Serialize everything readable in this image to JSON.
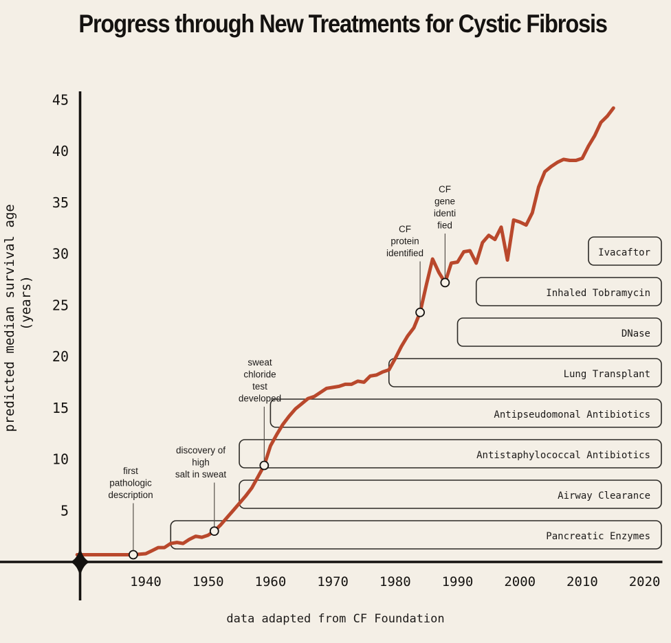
{
  "page": {
    "title": "Progress through New Treatments for Cystic Fibrosis",
    "caption": "data adapted from CF Foundation"
  },
  "chart_data": {
    "type": "line",
    "title": "Progress through New Treatments for Cystic Fibrosis",
    "source_note": "data adapted from CF Foundation",
    "xlabel": "",
    "ylabel": "predicted median survival age",
    "ylabel_line2": "(years)",
    "xlim": [
      1929,
      2022
    ],
    "ylim": [
      0,
      45.5
    ],
    "xticks": [
      1940,
      1950,
      1960,
      1970,
      1980,
      1990,
      2000,
      2010,
      2020
    ],
    "yticks": [
      5,
      10,
      15,
      20,
      25,
      30,
      35,
      40,
      45
    ],
    "grid": false,
    "legend": "none",
    "colors": {
      "background": "#f4efe6",
      "line": "#b9482c",
      "axis": "#141210",
      "box_border": "#2b2925",
      "leader_line": "#56504a",
      "marker_fill": "#f7f2e9",
      "text": "#1b1918"
    },
    "series": [
      {
        "name": "predicted median survival age (years)",
        "points": [
          [
            1929,
            0.7
          ],
          [
            1932,
            0.7
          ],
          [
            1935,
            0.7
          ],
          [
            1938,
            0.7
          ],
          [
            1939,
            0.75
          ],
          [
            1940,
            0.8
          ],
          [
            1941,
            1.1
          ],
          [
            1942,
            1.4
          ],
          [
            1943,
            1.4
          ],
          [
            1944,
            1.8
          ],
          [
            1945,
            1.9
          ],
          [
            1946,
            1.8
          ],
          [
            1947,
            2.2
          ],
          [
            1948,
            2.5
          ],
          [
            1949,
            2.4
          ],
          [
            1950,
            2.6
          ],
          [
            1951,
            3.0
          ],
          [
            1952,
            3.6
          ],
          [
            1953,
            4.3
          ],
          [
            1954,
            5.0
          ],
          [
            1955,
            5.7
          ],
          [
            1956,
            6.4
          ],
          [
            1957,
            7.2
          ],
          [
            1958,
            8.3
          ],
          [
            1959,
            9.4
          ],
          [
            1960,
            11.3
          ],
          [
            1961,
            12.4
          ],
          [
            1962,
            13.4
          ],
          [
            1963,
            14.2
          ],
          [
            1964,
            14.9
          ],
          [
            1965,
            15.4
          ],
          [
            1966,
            15.9
          ],
          [
            1967,
            16.1
          ],
          [
            1968,
            16.5
          ],
          [
            1969,
            16.9
          ],
          [
            1970,
            17.0
          ],
          [
            1971,
            17.1
          ],
          [
            1972,
            17.3
          ],
          [
            1973,
            17.3
          ],
          [
            1974,
            17.6
          ],
          [
            1975,
            17.5
          ],
          [
            1976,
            18.1
          ],
          [
            1977,
            18.2
          ],
          [
            1978,
            18.5
          ],
          [
            1979,
            18.7
          ],
          [
            1980,
            19.8
          ],
          [
            1981,
            21.0
          ],
          [
            1982,
            22.0
          ],
          [
            1983,
            22.8
          ],
          [
            1984,
            24.3
          ],
          [
            1985,
            27.0
          ],
          [
            1986,
            29.5
          ],
          [
            1987,
            28.2
          ],
          [
            1988,
            27.2
          ],
          [
            1989,
            29.1
          ],
          [
            1990,
            29.2
          ],
          [
            1991,
            30.2
          ],
          [
            1992,
            30.3
          ],
          [
            1993,
            29.1
          ],
          [
            1994,
            31.1
          ],
          [
            1995,
            31.8
          ],
          [
            1996,
            31.4
          ],
          [
            1997,
            32.6
          ],
          [
            1998,
            29.4
          ],
          [
            1999,
            33.3
          ],
          [
            2000,
            33.1
          ],
          [
            2001,
            32.8
          ],
          [
            2002,
            34.0
          ],
          [
            2003,
            36.5
          ],
          [
            2004,
            38.0
          ],
          [
            2005,
            38.5
          ],
          [
            2006,
            38.9
          ],
          [
            2007,
            39.2
          ],
          [
            2008,
            39.1
          ],
          [
            2009,
            39.1
          ],
          [
            2010,
            39.3
          ],
          [
            2011,
            40.5
          ],
          [
            2012,
            41.5
          ],
          [
            2013,
            42.8
          ],
          [
            2014,
            43.4
          ],
          [
            2015,
            44.2
          ]
        ]
      }
    ],
    "events": [
      {
        "label_lines": [
          "first",
          "pathologic",
          "description"
        ],
        "year": 1938,
        "value": 0.7,
        "text_cx": 190,
        "text_top": 678
      },
      {
        "label_lines": [
          "discovery of",
          "high",
          "salt in sweat"
        ],
        "year": 1951,
        "value": 3.0,
        "text_cx": 292,
        "text_top": 648
      },
      {
        "label_lines": [
          "sweat",
          "chloride",
          "test",
          "developed"
        ],
        "year": 1959,
        "value": 9.4,
        "text_cx": 378,
        "text_top": 520
      },
      {
        "label_lines": [
          "CF",
          "protein",
          "identified"
        ],
        "year": 1984,
        "value": 24.3,
        "text_cx": 589,
        "text_top": 326
      },
      {
        "label_lines": [
          "CF",
          "gene",
          "identi",
          "fied"
        ],
        "year": 1988,
        "value": 27.2,
        "text_cx": 647,
        "text_top": 268
      }
    ],
    "treatments": [
      {
        "label": "Ivacaftor",
        "start_year": 2011
      },
      {
        "label": "Inhaled Tobramycin",
        "start_year": 1993
      },
      {
        "label": "DNase",
        "start_year": 1990
      },
      {
        "label": "Lung Transplant",
        "start_year": 1979
      },
      {
        "label": "Antipseudomonal Antibiotics",
        "start_year": 1960
      },
      {
        "label": "Antistaphylococcal Antibiotics",
        "start_year": 1955
      },
      {
        "label": "Airway Clearance",
        "start_year": 1955
      },
      {
        "label": "Pancreatic Enzymes",
        "start_year": 1944
      }
    ]
  }
}
